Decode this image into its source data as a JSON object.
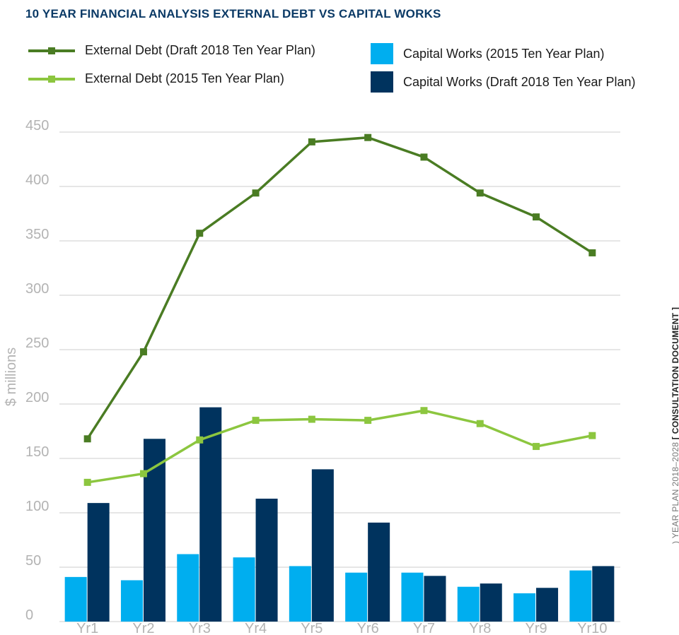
{
  "title": "10 YEAR FINANCIAL ANALYSIS EXTERNAL DEBT VS CAPITAL WORKS",
  "side_text": {
    "prefix": ") YEAR PLAN 2018–2028 ",
    "emphasis": "[ CONSULTATION DOCUMENT ]"
  },
  "colors": {
    "debt_draft_2018": "#4a7c23",
    "debt_2015": "#8cc63f",
    "capital_2015": "#00aeef",
    "capital_draft_2018": "#00335e",
    "grid": "#cccccc",
    "tick_text": "#b3b3b3",
    "title": "#0b3a66"
  },
  "chart_data": {
    "type": "bar",
    "title": "10 YEAR FINANCIAL ANALYSIS EXTERNAL DEBT VS CAPITAL WORKS",
    "xlabel": "",
    "ylabel": "$ millions",
    "ylim": [
      0,
      450
    ],
    "yticks": [
      0,
      50,
      100,
      150,
      200,
      250,
      300,
      350,
      400,
      450
    ],
    "grid": true,
    "legend_position": "top",
    "categories": [
      "Yr1",
      "Yr2",
      "Yr3",
      "Yr4",
      "Yr5",
      "Yr6",
      "Yr7",
      "Yr8",
      "Yr9",
      "Yr10"
    ],
    "bar_series": [
      {
        "name": "Capital Works (2015 Ten Year Plan)",
        "color_key": "capital_2015",
        "values": [
          41,
          38,
          62,
          59,
          51,
          45,
          45,
          32,
          26,
          47
        ]
      },
      {
        "name": "Capital Works (Draft 2018 Ten Year Plan)",
        "color_key": "capital_draft_2018",
        "values": [
          109,
          168,
          197,
          113,
          140,
          91,
          42,
          35,
          31,
          51
        ]
      }
    ],
    "line_series": [
      {
        "name": "External Debt (Draft 2018 Ten Year Plan)",
        "color_key": "debt_draft_2018",
        "values": [
          168,
          248,
          357,
          394,
          441,
          445,
          427,
          394,
          372,
          339
        ]
      },
      {
        "name": "External Debt (2015 Ten Year Plan)",
        "color_key": "debt_2015",
        "values": [
          128,
          136,
          167,
          185,
          186,
          185,
          194,
          182,
          161,
          171
        ]
      }
    ]
  },
  "legend": [
    {
      "label": "External Debt (Draft 2018 Ten Year Plan)",
      "kind": "line",
      "color_key": "debt_draft_2018"
    },
    {
      "label": "Capital Works (2015 Ten Year Plan)",
      "kind": "box",
      "color_key": "capital_2015"
    },
    {
      "label": "External Debt (2015 Ten Year Plan)",
      "kind": "line",
      "color_key": "debt_2015"
    },
    {
      "label": "Capital Works (Draft 2018 Ten Year Plan)",
      "kind": "box",
      "color_key": "capital_draft_2018"
    }
  ]
}
